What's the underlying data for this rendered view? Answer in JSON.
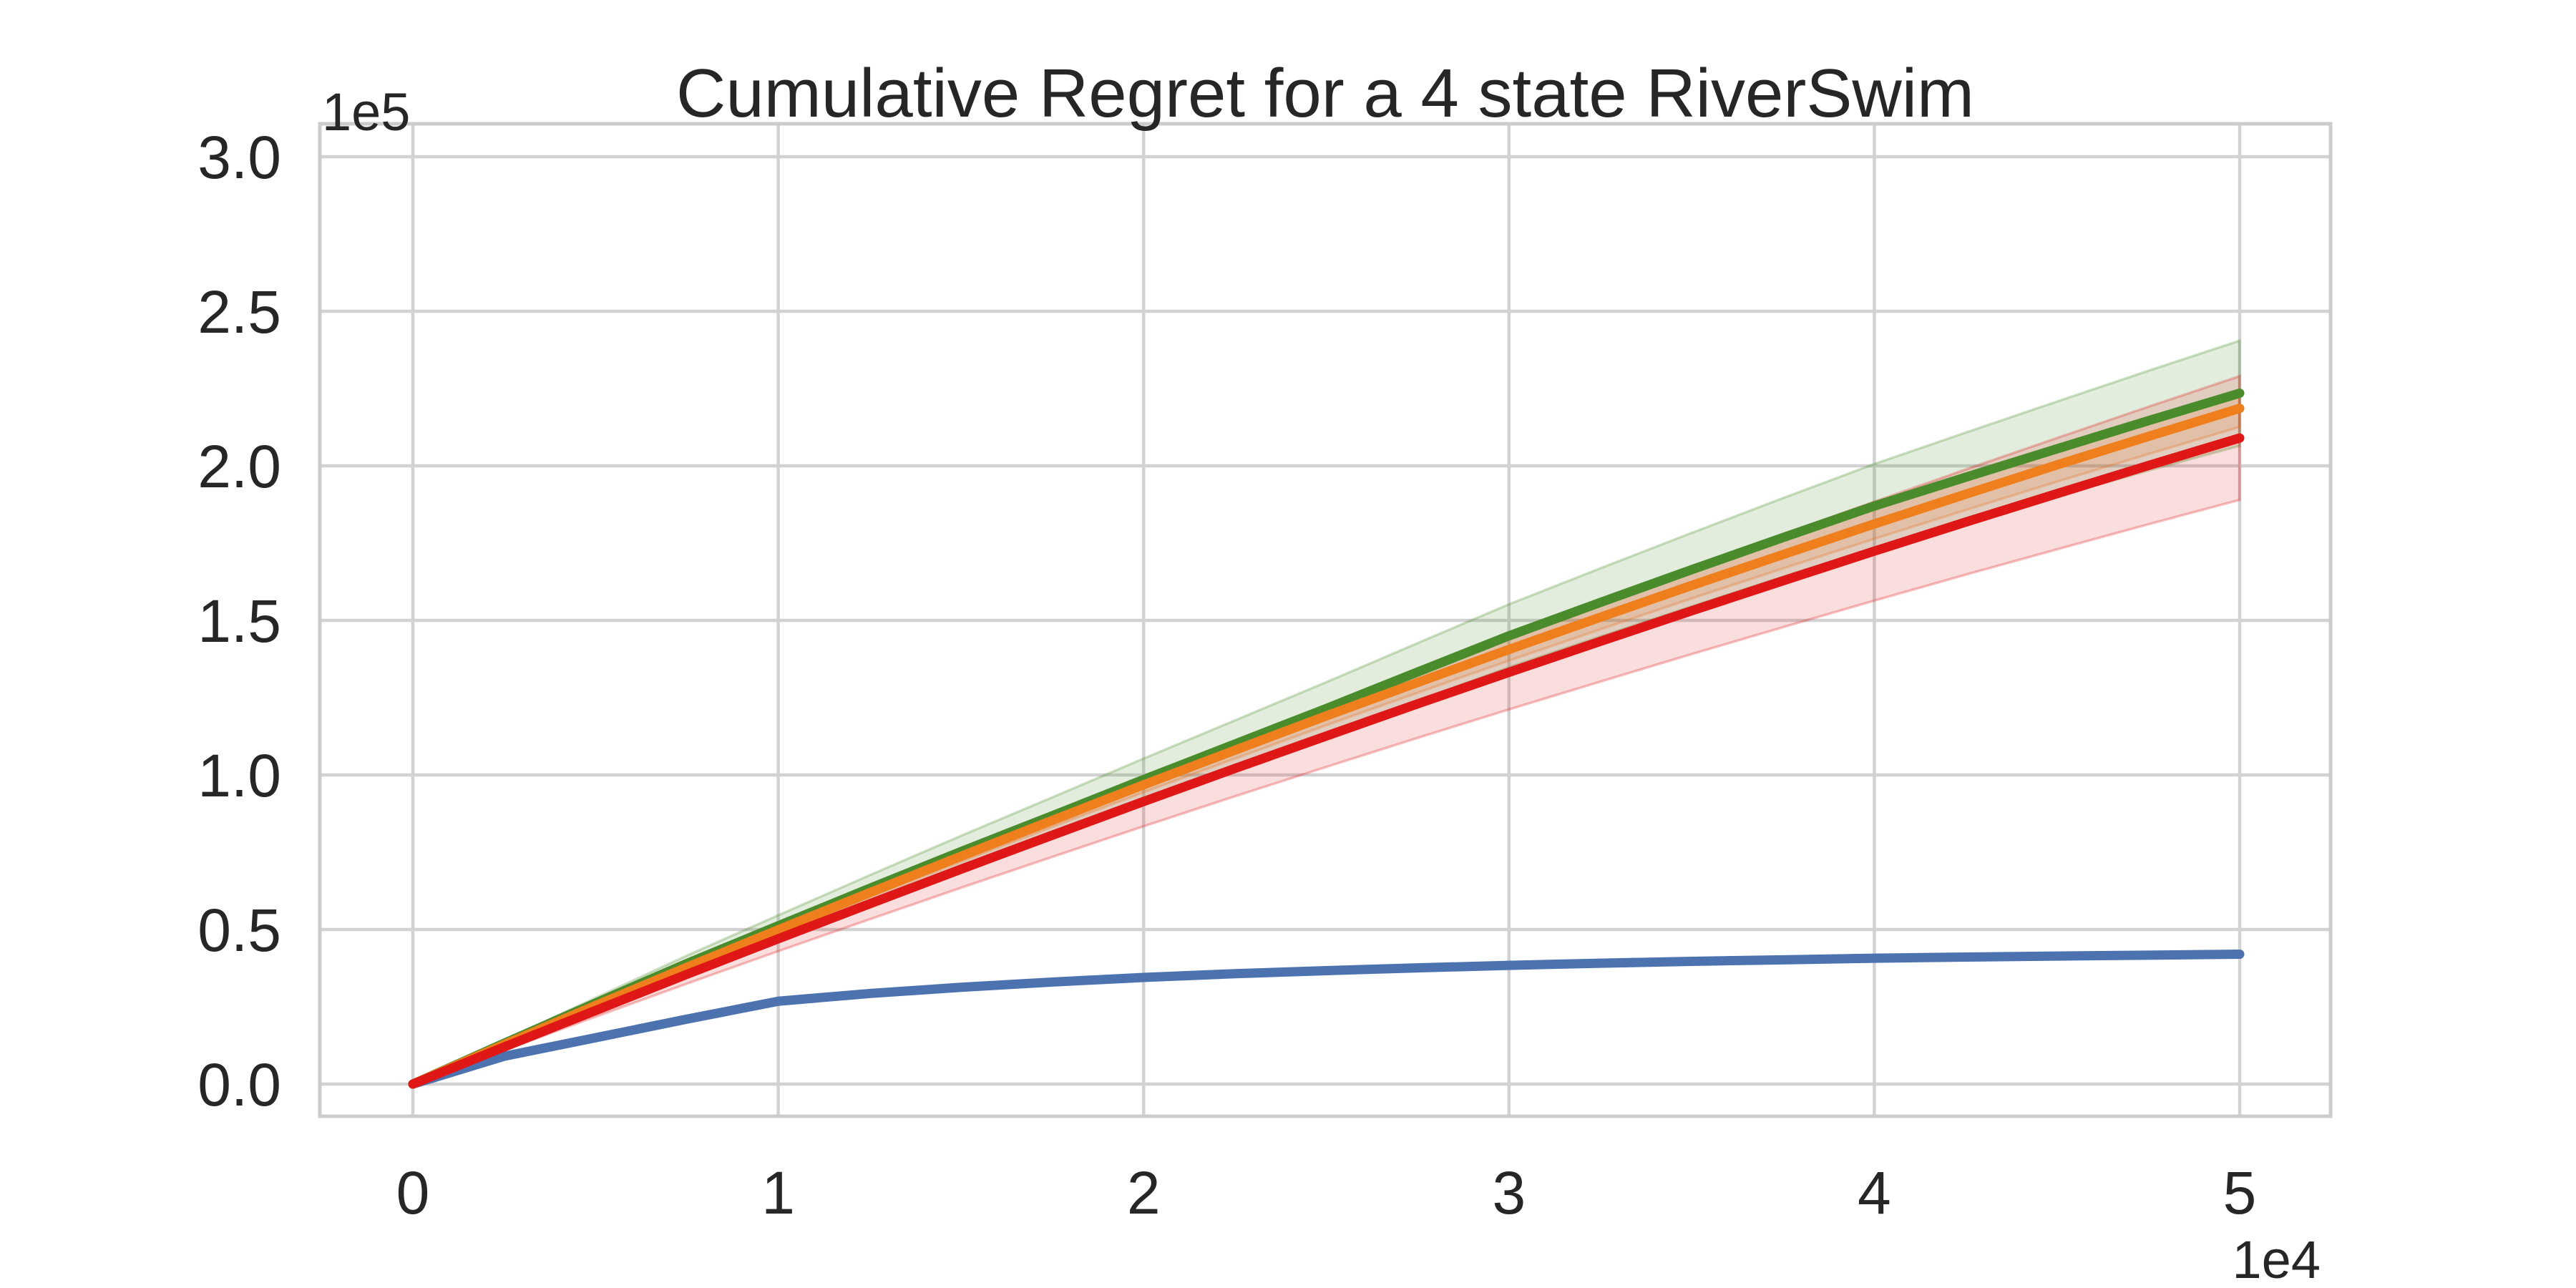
{
  "colors": {
    "background": "#ffffff",
    "grid": "#d2d2d2",
    "spine": "#cccccc",
    "text": "#262626"
  },
  "chart_data": {
    "type": "line",
    "title": "Cumulative Regret for a 4 state RiverSwim",
    "xlabel": "",
    "ylabel": "",
    "x_offset_text": "1e4",
    "y_offset_text": "1e5",
    "grid": true,
    "legend": "none",
    "xlim": [
      -0.25,
      5.25
    ],
    "ylim": [
      -0.105,
      3.105
    ],
    "x_tick_values": [
      0,
      1,
      2,
      3,
      4,
      5
    ],
    "x_tick_labels": [
      "0",
      "1",
      "2",
      "3",
      "4",
      "5"
    ],
    "y_tick_values": [
      0.0,
      0.5,
      1.0,
      1.5,
      2.0,
      2.5,
      3.0
    ],
    "y_tick_labels": [
      "0.0",
      "0.5",
      "1.0",
      "1.5",
      "2.0",
      "2.5",
      "3.0"
    ],
    "x_units_multiplier": 10000,
    "y_units_multiplier": 100000,
    "x": [
      0,
      0.25,
      0.5,
      0.75,
      1.0,
      1.25,
      1.5,
      1.75,
      2.0,
      2.25,
      2.5,
      2.75,
      3.0,
      3.25,
      3.5,
      3.75,
      4.0,
      4.25,
      4.5,
      4.75,
      5.0
    ],
    "series": [
      {
        "name": "blue-line",
        "color": "#4C72B0",
        "values": [
          0,
          0.09,
          0.15,
          0.21,
          0.268,
          0.293,
          0.313,
          0.33,
          0.345,
          0.357,
          0.367,
          0.376,
          0.384,
          0.391,
          0.397,
          0.402,
          0.407,
          0.411,
          0.414,
          0.417,
          0.42
        ],
        "band_halfwidths": null,
        "band_opacity": 0
      },
      {
        "name": "green-line",
        "color": "#4A8C2C",
        "values": [
          0,
          0.132,
          0.262,
          0.39,
          0.512,
          0.633,
          0.752,
          0.868,
          0.985,
          1.1,
          1.215,
          1.333,
          1.45,
          1.558,
          1.664,
          1.768,
          1.87,
          1.963,
          2.055,
          2.146,
          2.235
        ],
        "band_halfwidths": [
          0,
          0.0085,
          0.017,
          0.0255,
          0.034,
          0.0425,
          0.051,
          0.0595,
          0.068,
          0.0765,
          0.085,
          0.0935,
          0.102,
          0.1105,
          0.119,
          0.1275,
          0.136,
          0.1445,
          0.153,
          0.1615,
          0.17
        ],
        "band_opacity": 0.16
      },
      {
        "name": "orange-line",
        "color": "#EE7F1C",
        "values": [
          0,
          0.128,
          0.254,
          0.378,
          0.499,
          0.619,
          0.737,
          0.853,
          0.968,
          1.08,
          1.191,
          1.299,
          1.406,
          1.51,
          1.613,
          1.713,
          1.812,
          1.908,
          2.003,
          2.095,
          2.186
        ],
        "band_halfwidths": [
          0,
          0.003,
          0.006,
          0.009,
          0.012,
          0.015,
          0.018,
          0.021,
          0.024,
          0.027,
          0.03,
          0.033,
          0.036,
          0.039,
          0.042,
          0.045,
          0.048,
          0.051,
          0.054,
          0.057,
          0.06
        ],
        "band_opacity": 0.15
      },
      {
        "name": "red-line",
        "color": "#DF1717",
        "values": [
          0,
          0.12,
          0.238,
          0.355,
          0.47,
          0.583,
          0.695,
          0.805,
          0.914,
          1.021,
          1.126,
          1.23,
          1.332,
          1.432,
          1.531,
          1.628,
          1.724,
          1.818,
          1.91,
          2.001,
          2.09
        ],
        "band_halfwidths": [
          0,
          0.01,
          0.02,
          0.03,
          0.04,
          0.05,
          0.06,
          0.07,
          0.08,
          0.09,
          0.1,
          0.11,
          0.12,
          0.13,
          0.14,
          0.15,
          0.16,
          0.17,
          0.18,
          0.19,
          0.2
        ],
        "band_opacity": 0.14
      }
    ]
  }
}
